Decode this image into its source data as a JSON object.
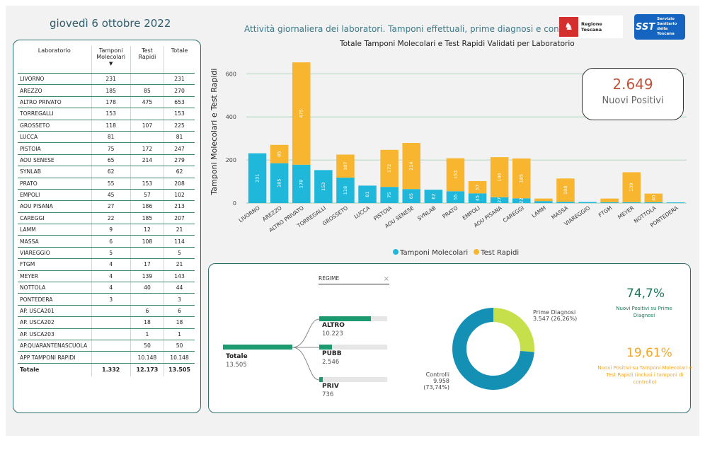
{
  "header": {
    "date": "giovedì 6 ottobre 2022",
    "subtitle": "Attività giornaliera dei laboratori. Tamponi effettuali, prime diagnosi e controlli",
    "chart_title": "Totale Tamponi Molecolari e Test Rapidi Validati per Laboratorio",
    "logo_rt": "Regione Toscana",
    "logo_sst": "SST",
    "logo_sst_text": "Servizio Sanitario della Toscana"
  },
  "table": {
    "headers": [
      "Laboratorio",
      "Tamponi Molecolari",
      "Test Rapidi",
      "Totale"
    ],
    "rows": [
      [
        "LIVORNO",
        "231",
        "",
        "231"
      ],
      [
        "AREZZO",
        "185",
        "85",
        "270"
      ],
      [
        "ALTRO PRIVATO",
        "178",
        "475",
        "653"
      ],
      [
        "TORREGALLI",
        "153",
        "",
        "153"
      ],
      [
        "GROSSETO",
        "118",
        "107",
        "225"
      ],
      [
        "LUCCA",
        "81",
        "",
        "81"
      ],
      [
        "PISTOIA",
        "75",
        "172",
        "247"
      ],
      [
        "AOU SENESE",
        "65",
        "214",
        "279"
      ],
      [
        "SYNLAB",
        "62",
        "",
        "62"
      ],
      [
        "PRATO",
        "55",
        "153",
        "208"
      ],
      [
        "EMPOLI",
        "45",
        "57",
        "102"
      ],
      [
        "AOU PISANA",
        "27",
        "186",
        "213"
      ],
      [
        "CAREGGI",
        "22",
        "185",
        "207"
      ],
      [
        "LAMM",
        "9",
        "12",
        "21"
      ],
      [
        "MASSA",
        "6",
        "108",
        "114"
      ],
      [
        "VIAREGGIO",
        "5",
        "",
        "5"
      ],
      [
        "FTGM",
        "4",
        "17",
        "21"
      ],
      [
        "MEYER",
        "4",
        "139",
        "143"
      ],
      [
        "NOTTOLA",
        "4",
        "40",
        "44"
      ],
      [
        "PONTEDERA",
        "3",
        "",
        "3"
      ],
      [
        "AP. USCA201",
        "",
        "6",
        "6"
      ],
      [
        "AP. USCA202",
        "",
        "18",
        "18"
      ],
      [
        "AP. USCA203",
        "",
        "1",
        "1"
      ],
      [
        "AP.QUARANTENASCUOLA",
        "",
        "50",
        "50"
      ],
      [
        "APP TAMPONI RAPIDI",
        "",
        "10.148",
        "10.148"
      ]
    ],
    "total": [
      "Totale",
      "1.332",
      "12.173",
      "13.505"
    ]
  },
  "kpi": {
    "value": "2.649",
    "label": "Nuovi Positivi"
  },
  "legend": {
    "molecolari": "Tamponi Molecolari",
    "rapidi": "Test Rapidi"
  },
  "colors": {
    "molecolari": "#1fb8da",
    "rapidi": "#f8b630",
    "accent": "#2e6e6e",
    "green": "#1a9a6e",
    "donut_blue": "#1490b4",
    "donut_green": "#c5e04a"
  },
  "chart_data": {
    "type": "bar",
    "stacked": true,
    "ylabel": "Tamponi Molecolari e Test Rapidi",
    "ylim": [
      0,
      660
    ],
    "yticks": [
      0,
      200,
      400,
      600
    ],
    "categories": [
      "LIVORNO",
      "AREZZO",
      "ALTRO PRIVATO",
      "TORREGALLI",
      "GROSSETO",
      "LUCCA",
      "PISTOIA",
      "AOU SENESE",
      "SYNLAB",
      "PRATO",
      "EMPOLI",
      "AOU PISANA",
      "CAREGGI",
      "LAMM",
      "MASSA",
      "VIAREGGIO",
      "FTGM",
      "MEYER",
      "NOTTOLA",
      "PONTEDERA"
    ],
    "series": [
      {
        "name": "Tamponi Molecolari",
        "values": [
          231,
          185,
          178,
          153,
          118,
          81,
          75,
          65,
          62,
          55,
          45,
          27,
          22,
          9,
          6,
          5,
          4,
          4,
          4,
          3
        ]
      },
      {
        "name": "Test Rapidi",
        "values": [
          0,
          85,
          475,
          0,
          107,
          0,
          172,
          214,
          0,
          153,
          57,
          186,
          185,
          12,
          108,
          0,
          17,
          139,
          40,
          0
        ]
      }
    ]
  },
  "decomposition": {
    "filter_label": "REGIME",
    "root": {
      "label": "Totale",
      "value": "13.505"
    },
    "children": [
      {
        "label": "ALTRO",
        "value": "10.223",
        "fraction": 0.757
      },
      {
        "label": "PUBB",
        "value": "2.546",
        "fraction": 0.189
      },
      {
        "label": "PRIV",
        "value": "736",
        "fraction": 0.054
      }
    ]
  },
  "donut": {
    "slices": [
      {
        "label": "Prime Diagnosi",
        "value": "3.547 (26,26%)",
        "fraction": 0.2626
      },
      {
        "label": "Controlli",
        "value": "9.958 (73,74%)",
        "fraction": 0.7374
      }
    ]
  },
  "stats": {
    "pct1": "74,7%",
    "pct1_label": "Nuovi Positivi su Prime Diagnosi",
    "pct2": "19,61%",
    "pct2_label": "Nuovi Positivi su Tamponi Molecolari e Test Rapidi (inclusi i tamponi di controllo)"
  }
}
